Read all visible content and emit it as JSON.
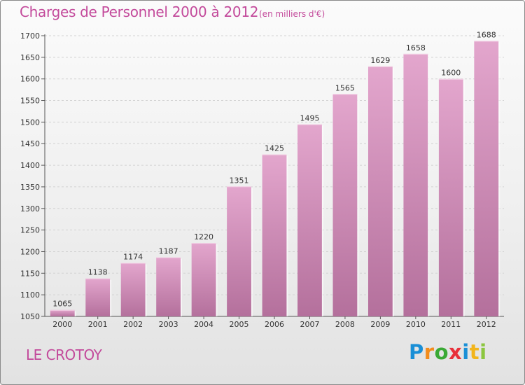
{
  "chart_data": {
    "type": "bar",
    "title": "Charges de Personnel 2000 à 2012",
    "subtitle": "(en milliers d'€)",
    "xlabel": "",
    "ylabel": "",
    "categories": [
      "2000",
      "2001",
      "2002",
      "2003",
      "2004",
      "2005",
      "2006",
      "2007",
      "2008",
      "2009",
      "2010",
      "2011",
      "2012"
    ],
    "values": [
      1065,
      1138,
      1174,
      1187,
      1220,
      1351,
      1425,
      1495,
      1565,
      1629,
      1658,
      1600,
      1688
    ],
    "value_labels": [
      "1065",
      "1138",
      "1174",
      "1187",
      "1220",
      "1351",
      "1425",
      "1495",
      "1565",
      "1629",
      "1658",
      "1600",
      "1688"
    ],
    "ylim": [
      1050,
      1700
    ],
    "yticks": [
      1050,
      1100,
      1150,
      1200,
      1250,
      1300,
      1350,
      1400,
      1450,
      1500,
      1550,
      1600,
      1650,
      1700
    ],
    "ytick_labels": [
      "1050",
      "1100",
      "1150",
      "1200",
      "1250",
      "1300",
      "1350",
      "1400",
      "1450",
      "1500",
      "1550",
      "1600",
      "1650",
      "1700"
    ],
    "grid": true,
    "bar_color": "#d891be"
  },
  "footer": {
    "town": "LE CROTOY"
  },
  "logo": {
    "letters": [
      "P",
      "r",
      "o",
      "x",
      "i",
      "t",
      "i"
    ],
    "colors": [
      "#1a8fd6",
      "#f28c1c",
      "#3aa935",
      "#e8303a",
      "#1a8fd6",
      "#f2b51c",
      "#8cc63f"
    ]
  },
  "colors": {
    "accent": "#c34a9b"
  }
}
